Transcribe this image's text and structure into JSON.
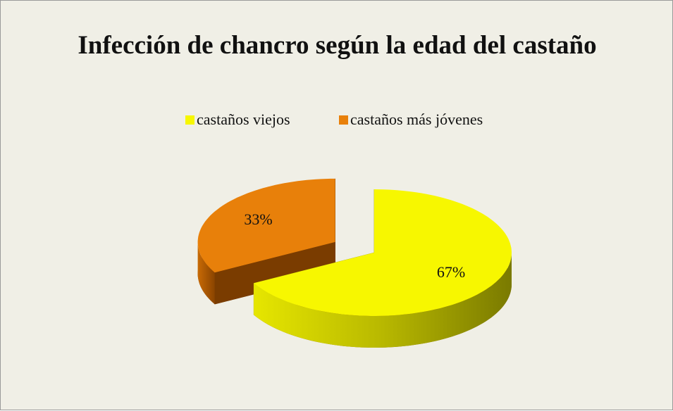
{
  "chart_data": {
    "type": "pie",
    "title": "Infección de chancro según la edad del castaño",
    "categories": [
      "castaños viejos",
      "castaños más jóvenes"
    ],
    "values": [
      67,
      33
    ],
    "value_labels": [
      "67%",
      "33%"
    ],
    "colors": [
      "#f7f700",
      "#e8800a"
    ],
    "legend": "top"
  }
}
